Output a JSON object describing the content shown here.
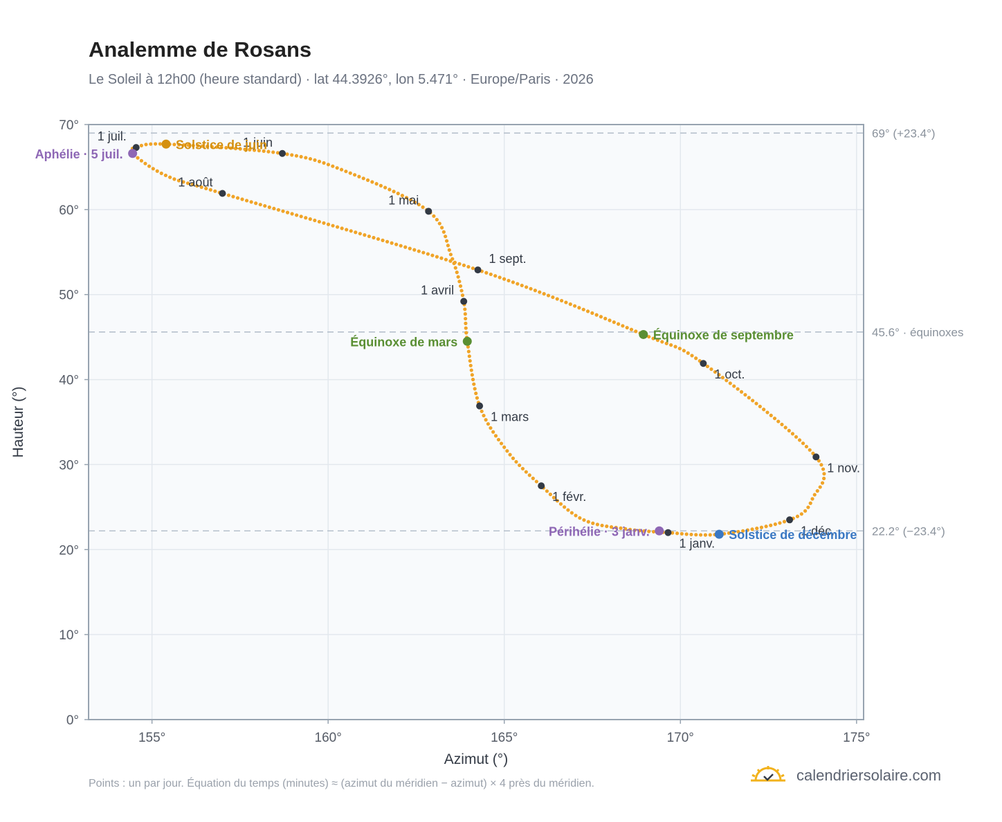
{
  "title": "Analemme de Rosans",
  "subtitle": "Le Soleil à 12h00 (heure standard) · lat 44.3926°, lon 5.471° · Europe/Paris · 2026",
  "footnote": "Points : un par jour. Équation du temps (minutes) ≈ (azimut du méridien − azimut) × 4 près du méridien.",
  "brand": {
    "name": "calendriersolaire.com",
    "icon": "sun-logo-icon"
  },
  "colors": {
    "curve": "#f0a428",
    "month_marker": "#333a45",
    "solstice_june": "#d4900f",
    "solstice_december": "#3a78c3",
    "equinox": "#5a8f33",
    "perihelion_aphelion": "#8e67b5",
    "reference_line": "#b6c0cc",
    "plot_bg": "#f8fafc",
    "axis_frame": "#97a3b0"
  },
  "chart_data": {
    "type": "scatter",
    "xlabel": "Azimut (°)",
    "ylabel": "Hauteur (°)",
    "xlim": [
      153.2,
      175.2
    ],
    "ylim": [
      0,
      70
    ],
    "x_ticks": [
      155,
      160,
      165,
      170,
      175
    ],
    "y_ticks": [
      0,
      10,
      20,
      30,
      40,
      50,
      60,
      70
    ],
    "x_tick_labels": [
      "155°",
      "160°",
      "165°",
      "170°",
      "175°"
    ],
    "y_tick_labels": [
      "0°",
      "10°",
      "20°",
      "30°",
      "40°",
      "50°",
      "60°",
      "70°"
    ],
    "grid": true,
    "series": [
      {
        "points_per": "day",
        "anchors": [
          [
            169.64,
            22.0
          ],
          [
            168.5,
            22.4
          ],
          [
            167.2,
            23.6
          ],
          [
            166.05,
            27.5
          ],
          [
            165.1,
            31.5
          ],
          [
            164.3,
            36.9
          ],
          [
            163.95,
            44.5
          ],
          [
            163.85,
            49.2
          ],
          [
            163.5,
            54.5
          ],
          [
            162.85,
            59.8
          ],
          [
            160.5,
            64.5
          ],
          [
            158.7,
            66.6
          ],
          [
            155.4,
            67.7
          ],
          [
            154.55,
            67.3
          ],
          [
            154.45,
            66.6
          ],
          [
            155.4,
            64.0
          ],
          [
            157.0,
            61.9
          ],
          [
            164.25,
            52.9
          ],
          [
            168.95,
            45.3
          ],
          [
            170.65,
            41.9
          ],
          [
            173.85,
            30.9
          ],
          [
            173.75,
            26.0
          ],
          [
            173.1,
            23.5
          ],
          [
            171.1,
            21.8
          ],
          [
            169.64,
            22.0
          ]
        ]
      }
    ],
    "reference_lines": [
      {
        "y": 69.0,
        "label": "69° (+23.4°)"
      },
      {
        "y": 45.6,
        "label": "45.6° · équinoxes"
      },
      {
        "y": 22.2,
        "label": "22.2° (−23.4°)"
      }
    ],
    "month_markers": [
      {
        "label": "1 janv.",
        "x": 169.65,
        "y": 22.0,
        "pos": "below-right"
      },
      {
        "label": "1 févr.",
        "x": 166.05,
        "y": 27.5,
        "pos": "below-right"
      },
      {
        "label": "1 mars",
        "x": 164.3,
        "y": 36.9,
        "pos": "below-right"
      },
      {
        "label": "1 avril",
        "x": 163.85,
        "y": 49.2,
        "pos": "above-left"
      },
      {
        "label": "1 mai",
        "x": 162.85,
        "y": 59.8,
        "pos": "above-left"
      },
      {
        "label": "1 juin",
        "x": 158.7,
        "y": 66.6,
        "pos": "above-left"
      },
      {
        "label": "1 juil.",
        "x": 154.55,
        "y": 67.3,
        "pos": "above-left"
      },
      {
        "label": "1 août",
        "x": 157.0,
        "y": 61.9,
        "pos": "above-left"
      },
      {
        "label": "1 sept.",
        "x": 164.25,
        "y": 52.9,
        "pos": "above-right"
      },
      {
        "label": "1 oct.",
        "x": 170.65,
        "y": 41.9,
        "pos": "below-right"
      },
      {
        "label": "1 nov.",
        "x": 173.85,
        "y": 30.9,
        "pos": "below-right"
      },
      {
        "label": "1 déc.",
        "x": 173.1,
        "y": 23.5,
        "pos": "below-right"
      }
    ],
    "events": [
      {
        "label": "Solstice de juin",
        "x": 155.4,
        "y": 67.7,
        "color": "solstice_june",
        "side": "right"
      },
      {
        "label": "Solstice de décembre",
        "x": 171.1,
        "y": 21.8,
        "color": "solstice_december",
        "side": "right"
      },
      {
        "label": "Équinoxe de mars",
        "x": 163.95,
        "y": 44.5,
        "color": "equinox",
        "side": "left"
      },
      {
        "label": "Équinoxe de septembre",
        "x": 168.95,
        "y": 45.3,
        "color": "equinox",
        "side": "right"
      },
      {
        "label": "Aphélie · 5 juil.",
        "x": 154.45,
        "y": 66.6,
        "color": "perihelion_aphelion",
        "side": "left"
      },
      {
        "label": "Périhélie · 3 janv.",
        "x": 169.4,
        "y": 22.2,
        "color": "perihelion_aphelion",
        "side": "left"
      }
    ]
  }
}
